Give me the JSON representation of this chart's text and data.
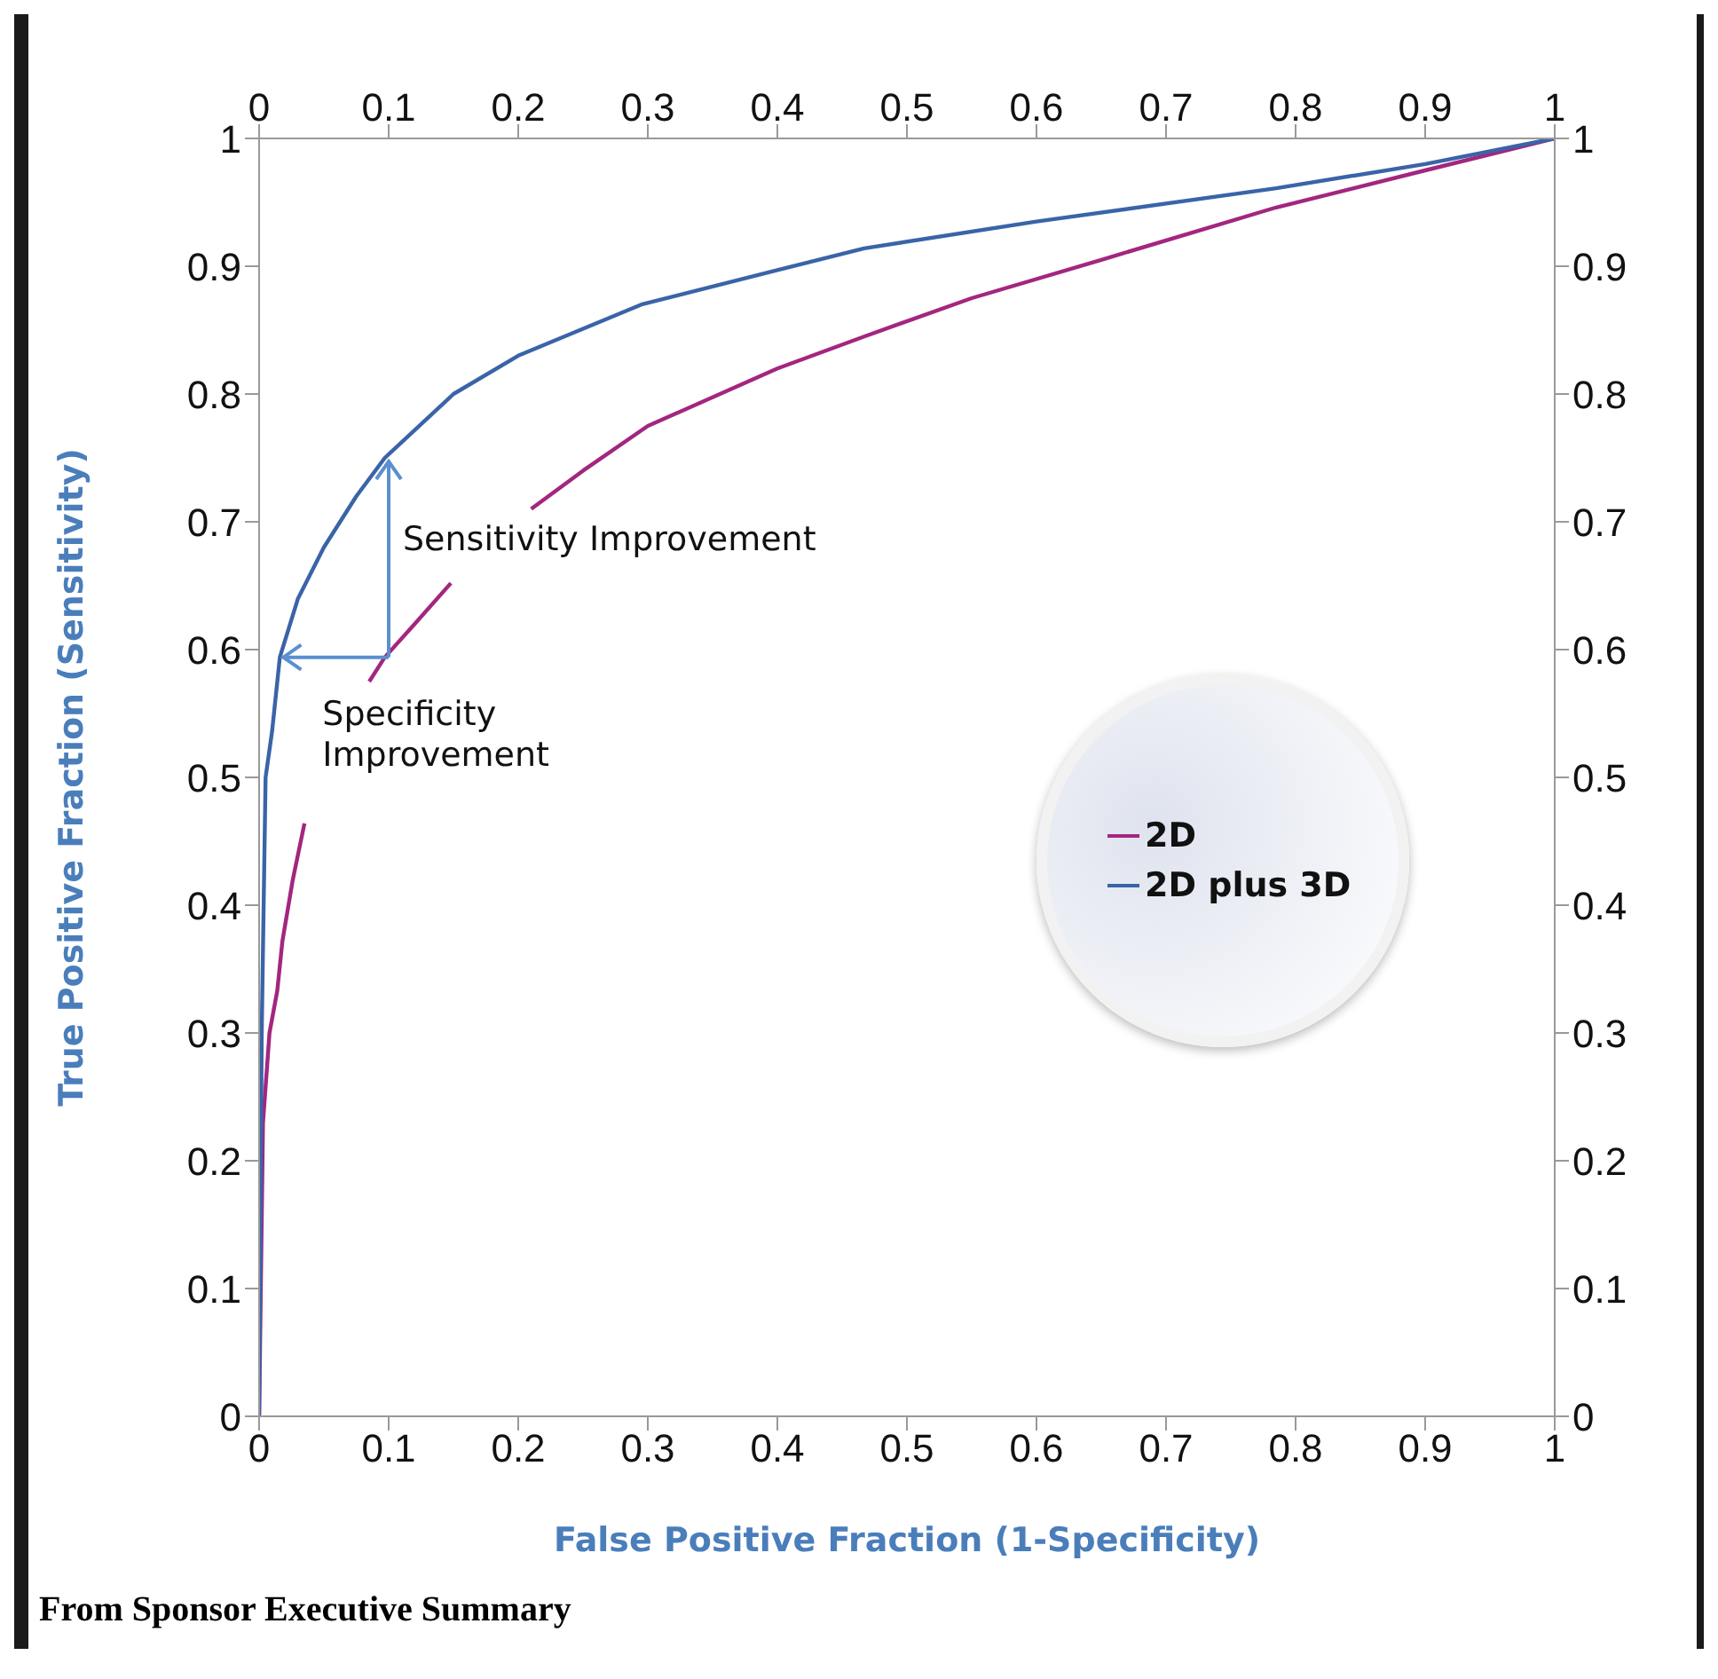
{
  "chart_data": {
    "type": "line",
    "xlabel": "False Positive Fraction (1-Specificity)",
    "ylabel": "True Positive Fraction (Sensitivity)",
    "xlim": [
      0,
      1
    ],
    "xticks": [
      0,
      0.1,
      0.2,
      0.3,
      0.4,
      0.5,
      0.6,
      0.7,
      0.8,
      0.9,
      1
    ],
    "x2lim": [
      0,
      1
    ],
    "x2ticks": [
      0,
      0.1,
      0.2,
      0.3,
      0.4,
      0.5,
      0.6,
      0.7,
      0.8,
      0.9,
      1
    ],
    "ylim": [
      0,
      1
    ],
    "yticks": [
      0,
      0.1,
      0.2,
      0.3,
      0.4,
      0.5,
      0.6,
      0.7,
      0.8,
      0.9,
      1
    ],
    "y2lim": [
      0,
      1
    ],
    "y2ticks": [
      0,
      0.1,
      0.2,
      0.3,
      0.4,
      0.5,
      0.6,
      0.7,
      0.8,
      0.9,
      1
    ],
    "series": [
      {
        "name": "2D",
        "color": "#a3267f",
        "x": [
          0,
          0.003,
          0.008,
          0.014,
          0.018,
          0.026,
          0.035,
          0.06,
          0.085,
          0.097,
          0.12,
          0.148,
          0.18,
          0.21,
          0.25,
          0.3,
          0.4,
          0.467,
          0.55,
          0.65,
          0.785,
          0.9,
          1
        ],
        "values": [
          0,
          0.23,
          0.3,
          0.333,
          0.372,
          0.42,
          0.464,
          null,
          0.575,
          0.594,
          0.62,
          0.652,
          null,
          0.71,
          0.74,
          0.775,
          0.82,
          0.845,
          0.875,
          0.905,
          0.946,
          0.975,
          1
        ]
      },
      {
        "name": "2D plus 3D",
        "color": "#3a64a8",
        "x": [
          0,
          0.002,
          0.005,
          0.01,
          0.016,
          0.03,
          0.05,
          0.075,
          0.097,
          0.15,
          0.2,
          0.295,
          0.4,
          0.467,
          0.6,
          0.785,
          0.9,
          1
        ],
        "values": [
          0,
          0.3,
          0.5,
          0.536,
          0.594,
          0.64,
          0.68,
          0.72,
          0.75,
          0.8,
          0.83,
          0.87,
          0.897,
          0.914,
          0.935,
          0.961,
          0.98,
          1
        ]
      }
    ],
    "annotations": [
      {
        "text": "Sensitivity Improvement",
        "x": 0.1,
        "y": 0.75
      },
      {
        "text": "Specificity\nImprovement",
        "x": 0.016,
        "y": 0.594
      },
      "From Sponsor Executive Summary"
    ],
    "legend": "right",
    "marker": "none",
    "line_style": "solid"
  }
}
